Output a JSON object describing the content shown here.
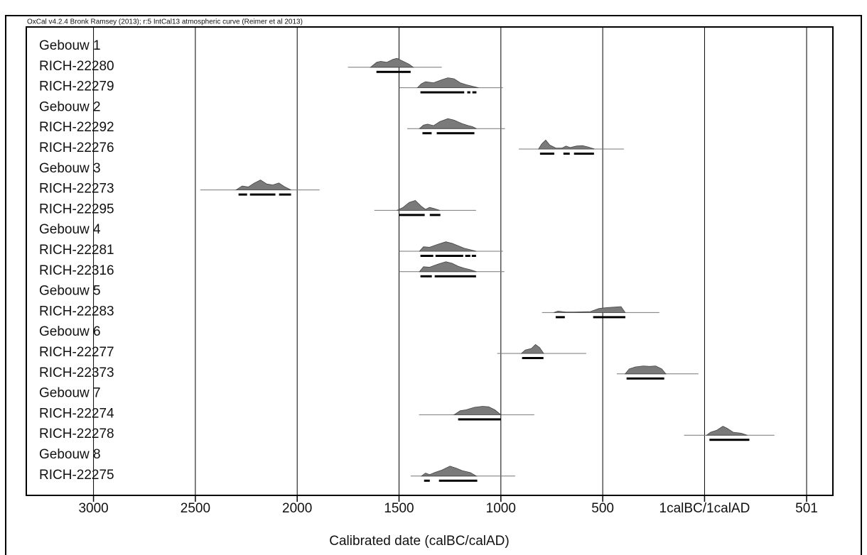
{
  "chart_data": {
    "type": "multiplot",
    "title": "OxCal v4.2.4 Bronk Ramsey (2013); r:5 IntCal13 atmospheric curve (Reimer et al 2013)",
    "xlabel": "Calibrated date (calBC/calAD)",
    "xlim": [
      -3330,
      630
    ],
    "xticks": [
      {
        "value": -3000,
        "label": "3000"
      },
      {
        "value": -2500,
        "label": "2500"
      },
      {
        "value": -2000,
        "label": "2000"
      },
      {
        "value": -1500,
        "label": "1500"
      },
      {
        "value": -1000,
        "label": "1000"
      },
      {
        "value": -500,
        "label": "500"
      },
      {
        "value": 0,
        "label": "1calBC/1calAD"
      },
      501
    ],
    "grid": true,
    "color": "#7a7a7a",
    "rows": [
      {
        "name": "Gebouw 1"
      },
      {
        "name": "RICH-22280",
        "range": [
          -1751,
          -1290
        ],
        "ranges": [
          [
            -1611,
            -1443
          ]
        ],
        "density_x": [
          -1640,
          -1610,
          -1590,
          -1560,
          -1530,
          -1510,
          -1480,
          -1450,
          -1430
        ],
        "density_y": [
          0,
          0.5,
          0.6,
          0.5,
          0.8,
          0.9,
          0.6,
          0.3,
          0
        ]
      },
      {
        "name": "RICH-22279",
        "range": [
          -1500,
          -990
        ],
        "ranges": [
          [
            -1395,
            -1180
          ],
          [
            -1165,
            -1150
          ],
          [
            -1140,
            -1120
          ]
        ],
        "density_x": [
          -1410,
          -1390,
          -1370,
          -1330,
          -1290,
          -1260,
          -1230,
          -1200,
          -1170,
          -1140,
          -1110
        ],
        "density_y": [
          0,
          0.4,
          0.6,
          0.5,
          0.8,
          1,
          0.9,
          0.5,
          0.3,
          0.15,
          0
        ]
      },
      {
        "name": "Gebouw 2"
      },
      {
        "name": "RICH-22292",
        "range": [
          -1460,
          -980
        ],
        "ranges": [
          [
            -1385,
            -1340
          ],
          [
            -1315,
            -1130
          ]
        ],
        "density_x": [
          -1400,
          -1380,
          -1360,
          -1330,
          -1300,
          -1260,
          -1230,
          -1190,
          -1160,
          -1140,
          -1120
        ],
        "density_y": [
          0,
          0.35,
          0.45,
          0.3,
          0.7,
          1,
          0.85,
          0.5,
          0.3,
          0.2,
          0
        ]
      },
      {
        "name": "RICH-22276",
        "range": [
          -912,
          -396
        ],
        "ranges": [
          [
            -808,
            -738
          ],
          [
            -693,
            -662
          ],
          [
            -641,
            -543
          ]
        ],
        "density_x": [
          -815,
          -800,
          -780,
          -760,
          -730,
          -700,
          -680,
          -660,
          -630,
          -600,
          -570,
          -540
        ],
        "density_y": [
          0,
          0.5,
          0.9,
          0.4,
          0.1,
          0.1,
          0.3,
          0.15,
          0.3,
          0.35,
          0.2,
          0
        ]
      },
      {
        "name": "Gebouw 3"
      },
      {
        "name": "RICH-22273",
        "range": [
          -2476,
          -1890
        ],
        "ranges": [
          [
            -2288,
            -2246
          ],
          [
            -2232,
            -2107
          ],
          [
            -2089,
            -2030
          ]
        ],
        "density_x": [
          -2300,
          -2270,
          -2240,
          -2210,
          -2180,
          -2150,
          -2120,
          -2090,
          -2060,
          -2030
        ],
        "density_y": [
          0,
          0.4,
          0.3,
          0.7,
          1,
          0.6,
          0.5,
          0.7,
          0.3,
          0
        ]
      },
      {
        "name": "RICH-22295",
        "range": [
          -1621,
          -1122
        ],
        "ranges": [
          [
            -1500,
            -1374
          ],
          [
            -1349,
            -1297
          ]
        ],
        "density_x": [
          -1510,
          -1480,
          -1450,
          -1420,
          -1390,
          -1370,
          -1350,
          -1330,
          -1300
        ],
        "density_y": [
          0,
          0.3,
          0.8,
          1,
          0.4,
          0.1,
          0.3,
          0.2,
          0
        ]
      },
      {
        "name": "Gebouw 4"
      },
      {
        "name": "RICH-22281",
        "range": [
          -1500,
          -990
        ],
        "ranges": [
          [
            -1395,
            -1332
          ],
          [
            -1321,
            -1185
          ],
          [
            -1175,
            -1150
          ],
          [
            -1143,
            -1122
          ]
        ],
        "density_x": [
          -1400,
          -1380,
          -1350,
          -1310,
          -1270,
          -1240,
          -1210,
          -1180,
          -1150,
          -1120
        ],
        "density_y": [
          0,
          0.45,
          0.4,
          0.7,
          0.95,
          0.8,
          0.55,
          0.3,
          0.15,
          0
        ]
      },
      {
        "name": "RICH-22316",
        "range": [
          -1500,
          -983
        ],
        "ranges": [
          [
            -1395,
            -1339
          ],
          [
            -1325,
            -1122
          ]
        ],
        "density_x": [
          -1400,
          -1380,
          -1350,
          -1310,
          -1270,
          -1240,
          -1210,
          -1180,
          -1150,
          -1120
        ],
        "density_y": [
          0,
          0.5,
          0.45,
          0.75,
          1,
          0.85,
          0.55,
          0.35,
          0.2,
          0
        ]
      },
      {
        "name": "Gebouw 5"
      },
      {
        "name": "RICH-22283",
        "range": [
          -798,
          -222
        ],
        "ranges": [
          [
            -731,
            -686
          ],
          [
            -547,
            -389
          ]
        ],
        "density_x": [
          -740,
          -720,
          -700,
          -680,
          -640,
          -560,
          -520,
          -480,
          -440,
          -410,
          -390
        ],
        "density_y": [
          0,
          0.15,
          0.1,
          0.05,
          0.05,
          0.1,
          0.4,
          0.5,
          0.55,
          0.6,
          0
        ]
      },
      {
        "name": "Gebouw 6"
      },
      {
        "name": "RICH-22277",
        "range": [
          -1018,
          -581
        ],
        "ranges": [
          [
            -896,
            -791
          ]
        ],
        "density_x": [
          -900,
          -880,
          -850,
          -830,
          -810,
          -790
        ],
        "density_y": [
          0,
          0.35,
          0.5,
          0.9,
          0.6,
          0
        ]
      },
      {
        "name": "RICH-22373",
        "range": [
          -431,
          -30
        ],
        "ranges": [
          [
            -383,
            -198
          ]
        ],
        "density_x": [
          -390,
          -370,
          -340,
          -300,
          -270,
          -240,
          -210,
          -190
        ],
        "density_y": [
          0,
          0.5,
          0.7,
          0.8,
          0.75,
          0.8,
          0.5,
          0
        ]
      },
      {
        "name": "Gebouw 7"
      },
      {
        "name": "RICH-22274",
        "range": [
          -1402,
          -836
        ],
        "ranges": [
          [
            -1210,
            -1000
          ]
        ],
        "density_x": [
          -1230,
          -1200,
          -1170,
          -1130,
          -1090,
          -1060,
          -1030,
          -1000
        ],
        "density_y": [
          0,
          0.4,
          0.5,
          0.75,
          0.85,
          0.8,
          0.5,
          0
        ]
      },
      {
        "name": "RICH-22278",
        "range": [
          -101,
          343
        ],
        "ranges": [
          [
            24,
            220
          ]
        ],
        "density_x": [
          10,
          30,
          60,
          90,
          110,
          140,
          180,
          210
        ],
        "density_y": [
          0,
          0.3,
          0.5,
          0.9,
          0.7,
          0.3,
          0.2,
          0
        ]
      },
      {
        "name": "Gebouw 8"
      },
      {
        "name": "RICH-22275",
        "range": [
          -1443,
          -930
        ],
        "ranges": [
          [
            -1377,
            -1349
          ],
          [
            -1304,
            -1116
          ]
        ],
        "density_x": [
          -1390,
          -1370,
          -1350,
          -1320,
          -1290,
          -1250,
          -1220,
          -1190,
          -1150,
          -1120
        ],
        "density_y": [
          0,
          0.3,
          0.15,
          0.4,
          0.6,
          1,
          0.8,
          0.55,
          0.35,
          0
        ]
      }
    ]
  }
}
